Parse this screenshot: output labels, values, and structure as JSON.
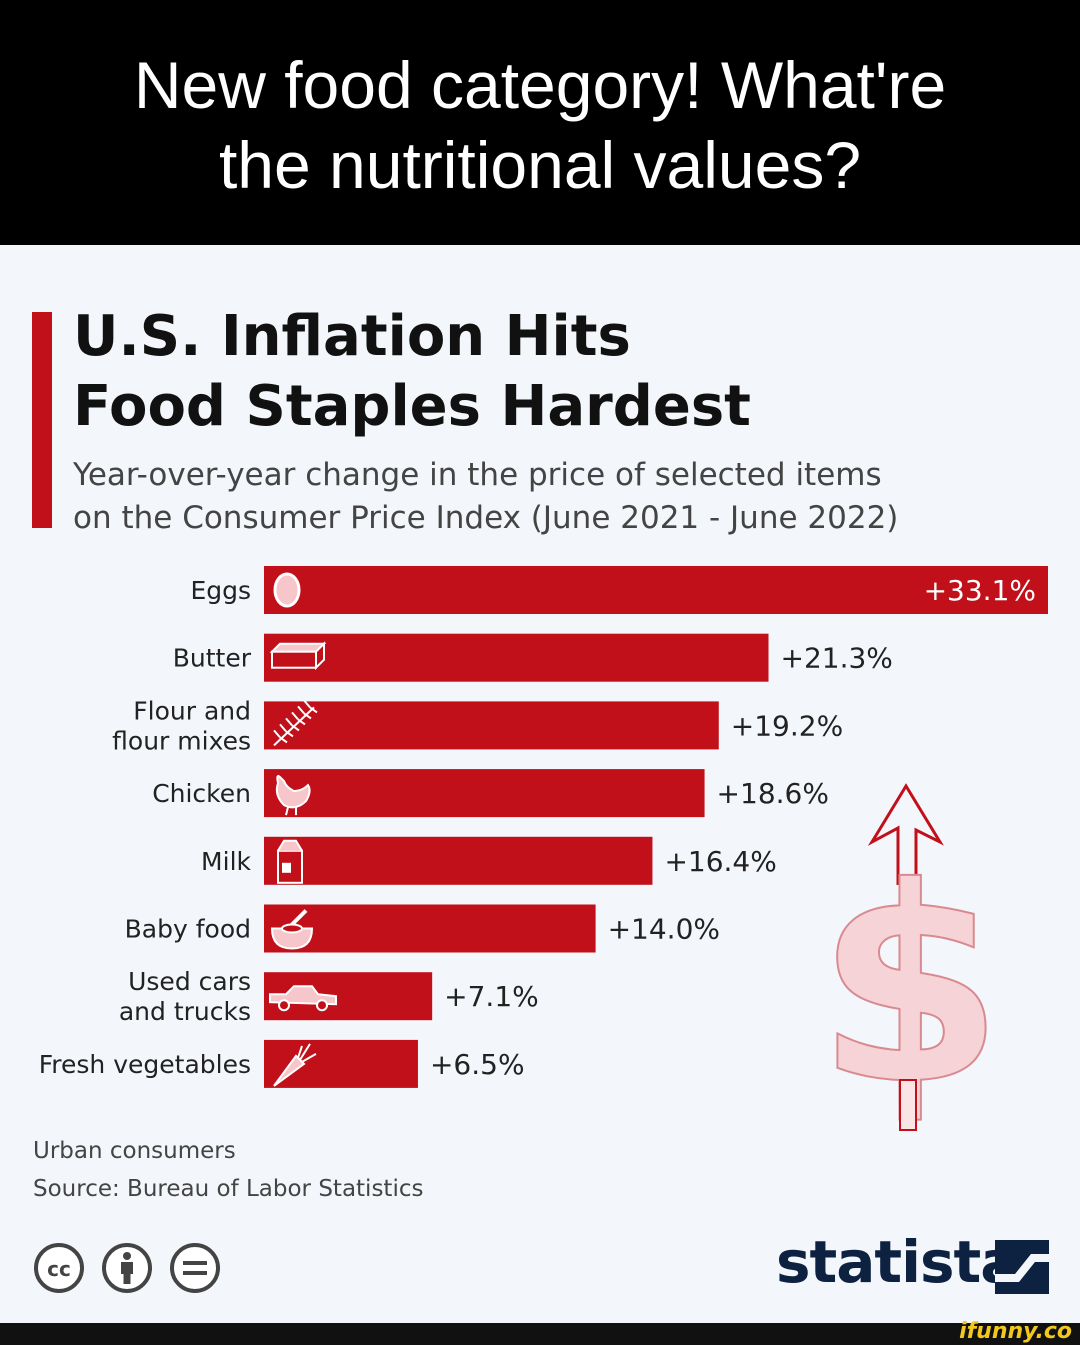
{
  "meme": {
    "line1": "New food category! What're",
    "line2": "the nutritional values?"
  },
  "chart_data": {
    "type": "bar",
    "orientation": "horizontal",
    "title_line1": "U.S. Inflation Hits",
    "title_line2": "Food Staples Hardest",
    "subtitle_line1": "Year-over-year change in the price of selected items",
    "subtitle_line2": "on the Consumer Price Index (June 2021 - June 2022)",
    "unit": "%",
    "bar_color": "#c1101a",
    "xlim": [
      0,
      33.1
    ],
    "items": [
      {
        "label": [
          "Eggs"
        ],
        "value": 33.1,
        "display": "+33.1%",
        "icon": "egg-icon"
      },
      {
        "label": [
          "Butter"
        ],
        "value": 21.3,
        "display": "+21.3%",
        "icon": "butter-icon"
      },
      {
        "label": [
          "Flour and",
          "flour mixes"
        ],
        "value": 19.2,
        "display": "+19.2%",
        "icon": "wheat-icon"
      },
      {
        "label": [
          "Chicken"
        ],
        "value": 18.6,
        "display": "+18.6%",
        "icon": "chicken-icon"
      },
      {
        "label": [
          "Milk"
        ],
        "value": 16.4,
        "display": "+16.4%",
        "icon": "milk-carton-icon"
      },
      {
        "label": [
          "Baby food"
        ],
        "value": 14.0,
        "display": "+14.0%",
        "icon": "bowl-icon"
      },
      {
        "label": [
          "Used cars",
          "and trucks"
        ],
        "value": 7.1,
        "display": "+7.1%",
        "icon": "truck-icon"
      },
      {
        "label": [
          "Fresh vegetables"
        ],
        "value": 6.5,
        "display": "+6.5%",
        "icon": "carrot-icon"
      }
    ]
  },
  "footer": {
    "note": "Urban consumers",
    "source": "Source: Bureau of Labor Statistics",
    "brand": "statista",
    "watermark": "ifunny.co"
  }
}
